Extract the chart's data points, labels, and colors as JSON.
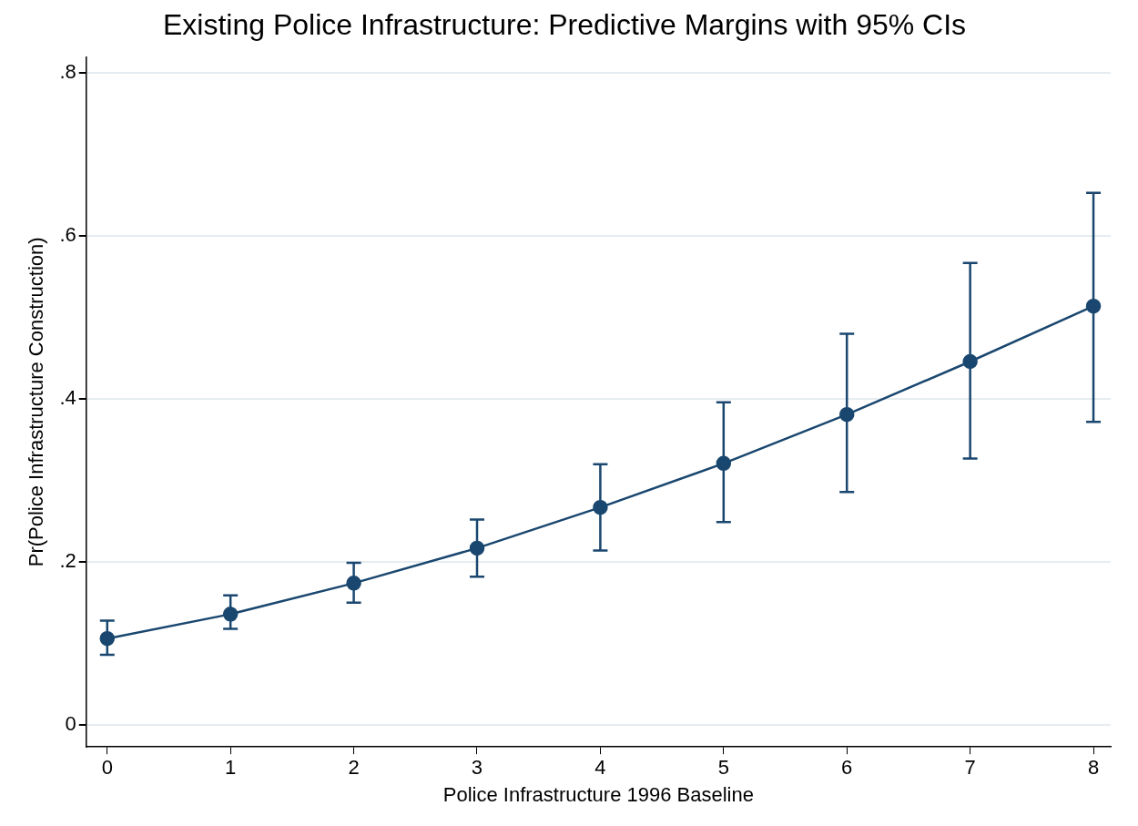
{
  "chart_data": {
    "type": "line",
    "title": "Existing Police Infrastructure: Predictive Margins with 95% CIs",
    "xlabel": "Police Infrastructure 1996 Baseline",
    "ylabel": "Pr(Police Infrastructure Construction)",
    "x": [
      0,
      1,
      2,
      3,
      4,
      5,
      6,
      7,
      8
    ],
    "series": [
      {
        "color": "#1a476f",
        "values": [
          0.106,
          0.136,
          0.174,
          0.217,
          0.267,
          0.321,
          0.381,
          0.446,
          0.514
        ],
        "errors": [
          [
            0.086,
            0.128
          ],
          [
            0.118,
            0.159
          ],
          [
            0.15,
            0.199
          ],
          [
            0.182,
            0.252
          ],
          [
            0.214,
            0.32
          ],
          [
            0.249,
            0.396
          ],
          [
            0.286,
            0.48
          ],
          [
            0.327,
            0.567
          ],
          [
            0.372,
            0.653
          ]
        ]
      }
    ],
    "xlim": [
      -0.17,
      8.14
    ],
    "xticks": [
      0,
      1,
      2,
      3,
      4,
      5,
      6,
      7,
      8
    ],
    "ylim": [
      -0.027,
      0.82
    ],
    "yticks": [
      {
        "value": 0,
        "label": "0"
      },
      {
        "value": 0.2,
        "label": ".2"
      },
      {
        "value": 0.4,
        "label": ".4"
      },
      {
        "value": 0.6,
        "label": ".6"
      },
      {
        "value": 0.8,
        "label": ".8"
      }
    ],
    "grid": "y",
    "legend": false,
    "marker": "circle",
    "line_style": "solid"
  }
}
